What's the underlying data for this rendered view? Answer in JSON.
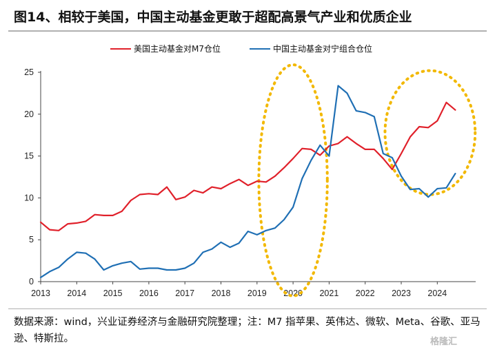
{
  "header": {
    "title": "图14、相较于美国，中国主动基金更敢于超配高景气产业和优质企业"
  },
  "footer": {
    "source": "数据来源：wind，兴业证券经济与金融研究院整理；注：M7 指苹果、英伟达、微软、Meta、谷歌、亚马逊、特斯拉。",
    "watermark": "格隆汇"
  },
  "chart_data": {
    "type": "line",
    "xlim": [
      2013,
      2024.6
    ],
    "ylim": [
      0,
      25
    ],
    "x_ticks": [
      "2013",
      "2014",
      "2015",
      "2016",
      "2017",
      "2018",
      "2019",
      "2020",
      "2021",
      "2022",
      "2023",
      "2024"
    ],
    "y_ticks": [
      "0",
      "5",
      "10",
      "15",
      "20",
      "25"
    ],
    "grid": false,
    "legend_position": "top",
    "annotations": [
      {
        "shape": "dashed-ellipse",
        "color": "#f2b800",
        "center_x": 2020.0,
        "center_y": 12.1,
        "rx_years": 0.95,
        "ry_value": 13.8
      },
      {
        "shape": "dashed-ellipse",
        "color": "#f2b800",
        "center_x": 2023.8,
        "center_y": 17.8,
        "rx_years": 1.25,
        "ry_value": 7.4
      }
    ],
    "series": [
      {
        "name": "美国主动基金对M7仓位",
        "color": "#e0202a",
        "points": [
          [
            2013.0,
            7.1
          ],
          [
            2013.25,
            6.2
          ],
          [
            2013.5,
            6.1
          ],
          [
            2013.75,
            6.9
          ],
          [
            2014.0,
            7.0
          ],
          [
            2014.25,
            7.2
          ],
          [
            2014.5,
            8.0
          ],
          [
            2014.75,
            7.9
          ],
          [
            2015.0,
            7.9
          ],
          [
            2015.25,
            8.4
          ],
          [
            2015.5,
            9.7
          ],
          [
            2015.75,
            10.4
          ],
          [
            2016.0,
            10.5
          ],
          [
            2016.25,
            10.4
          ],
          [
            2016.5,
            11.3
          ],
          [
            2016.75,
            9.8
          ],
          [
            2017.0,
            10.1
          ],
          [
            2017.25,
            10.9
          ],
          [
            2017.5,
            10.6
          ],
          [
            2017.75,
            11.3
          ],
          [
            2018.0,
            11.1
          ],
          [
            2018.25,
            11.7
          ],
          [
            2018.5,
            12.2
          ],
          [
            2018.75,
            11.5
          ],
          [
            2019.0,
            12.0
          ],
          [
            2019.25,
            11.9
          ],
          [
            2019.5,
            12.6
          ],
          [
            2019.75,
            13.6
          ],
          [
            2020.0,
            14.7
          ],
          [
            2020.25,
            15.9
          ],
          [
            2020.5,
            15.8
          ],
          [
            2020.75,
            15.1
          ],
          [
            2021.0,
            16.2
          ],
          [
            2021.25,
            16.5
          ],
          [
            2021.5,
            17.3
          ],
          [
            2021.75,
            16.5
          ],
          [
            2022.0,
            15.8
          ],
          [
            2022.25,
            15.8
          ],
          [
            2022.5,
            14.7
          ],
          [
            2022.75,
            13.4
          ],
          [
            2023.0,
            15.3
          ],
          [
            2023.25,
            17.3
          ],
          [
            2023.5,
            18.5
          ],
          [
            2023.75,
            18.4
          ],
          [
            2024.0,
            19.2
          ],
          [
            2024.25,
            21.4
          ],
          [
            2024.5,
            20.5
          ]
        ]
      },
      {
        "name": "中国主动基金对宁组合仓位",
        "color": "#1f6fb4",
        "points": [
          [
            2013.0,
            0.5
          ],
          [
            2013.25,
            1.2
          ],
          [
            2013.5,
            1.7
          ],
          [
            2013.75,
            2.7
          ],
          [
            2014.0,
            3.5
          ],
          [
            2014.25,
            3.4
          ],
          [
            2014.5,
            2.7
          ],
          [
            2014.75,
            1.4
          ],
          [
            2015.0,
            1.9
          ],
          [
            2015.25,
            2.2
          ],
          [
            2015.5,
            2.4
          ],
          [
            2015.75,
            1.5
          ],
          [
            2016.0,
            1.6
          ],
          [
            2016.25,
            1.6
          ],
          [
            2016.5,
            1.4
          ],
          [
            2016.75,
            1.4
          ],
          [
            2017.0,
            1.6
          ],
          [
            2017.25,
            2.2
          ],
          [
            2017.5,
            3.5
          ],
          [
            2017.75,
            3.9
          ],
          [
            2018.0,
            4.7
          ],
          [
            2018.25,
            4.1
          ],
          [
            2018.5,
            4.6
          ],
          [
            2018.75,
            6.0
          ],
          [
            2019.0,
            5.6
          ],
          [
            2019.25,
            6.1
          ],
          [
            2019.5,
            6.4
          ],
          [
            2019.75,
            7.4
          ],
          [
            2020.0,
            8.9
          ],
          [
            2020.25,
            12.3
          ],
          [
            2020.5,
            14.5
          ],
          [
            2020.75,
            16.3
          ],
          [
            2021.0,
            15.0
          ],
          [
            2021.25,
            23.4
          ],
          [
            2021.5,
            22.5
          ],
          [
            2021.75,
            20.4
          ],
          [
            2022.0,
            20.2
          ],
          [
            2022.25,
            19.7
          ],
          [
            2022.5,
            15.3
          ],
          [
            2022.75,
            14.8
          ],
          [
            2023.0,
            12.6
          ],
          [
            2023.25,
            11.0
          ],
          [
            2023.5,
            11.1
          ],
          [
            2023.75,
            10.1
          ],
          [
            2024.0,
            11.1
          ],
          [
            2024.25,
            11.2
          ],
          [
            2024.5,
            12.9
          ]
        ]
      }
    ]
  }
}
